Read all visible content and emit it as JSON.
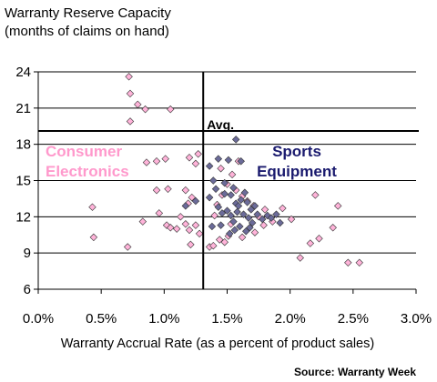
{
  "chart_data": {
    "type": "scatter",
    "title": "Warranty Reserve Capacity",
    "subtitle": "(months of claims on hand)",
    "xlabel": "Warranty Accrual Rate (as a percent of product sales)",
    "ylabel": "",
    "xlim": [
      0.0,
      3.0
    ],
    "ylim": [
      6,
      24
    ],
    "x_ticks": [
      0.0,
      0.5,
      1.0,
      1.5,
      2.0,
      2.5,
      3.0
    ],
    "x_tick_labels": [
      "0.0%",
      "0.5%",
      "1.0%",
      "1.5%",
      "2.0%",
      "2.5%",
      "3.0%"
    ],
    "y_ticks": [
      6,
      9,
      12,
      15,
      18,
      21,
      24
    ],
    "y_tick_labels": [
      "6",
      "9",
      "12",
      "15",
      "18",
      "21",
      "24"
    ],
    "grid": "horizontal",
    "reference_lines": {
      "vertical_x": 1.31,
      "horizontal_y": 19.1,
      "horizontal_label": "Avg."
    },
    "region_labels": [
      {
        "lines": [
          "Consumer",
          "Electronics"
        ],
        "color": "#ff99cc"
      },
      {
        "lines": [
          "Sports",
          "Equipment"
        ],
        "color": "#1a1a6e"
      }
    ],
    "source_note": "Source: Warranty Week",
    "series": [
      {
        "color": "#ffb3d9",
        "points": [
          [
            0.72,
            23.6
          ],
          [
            0.73,
            22.2
          ],
          [
            0.79,
            21.3
          ],
          [
            0.85,
            20.9
          ],
          [
            1.05,
            20.9
          ],
          [
            0.73,
            19.9
          ],
          [
            0.86,
            16.5
          ],
          [
            0.94,
            16.6
          ],
          [
            1.01,
            16.8
          ],
          [
            1.2,
            16.9
          ],
          [
            1.25,
            16.4
          ],
          [
            1.27,
            17.2
          ],
          [
            0.94,
            14.2
          ],
          [
            1.03,
            14.3
          ],
          [
            1.17,
            14.2
          ],
          [
            1.22,
            13.6
          ],
          [
            1.19,
            13.1
          ],
          [
            0.43,
            12.8
          ],
          [
            0.44,
            10.3
          ],
          [
            0.71,
            9.5
          ],
          [
            0.83,
            11.6
          ],
          [
            0.96,
            12.3
          ],
          [
            1.02,
            11.3
          ],
          [
            1.05,
            11.1
          ],
          [
            1.1,
            11.0
          ],
          [
            1.13,
            12.0
          ],
          [
            1.17,
            11.4
          ],
          [
            1.2,
            10.9
          ],
          [
            1.21,
            9.7
          ],
          [
            1.25,
            11.3
          ],
          [
            1.28,
            10.6
          ],
          [
            1.36,
            9.5
          ],
          [
            1.39,
            9.6
          ],
          [
            1.44,
            10.1
          ],
          [
            1.48,
            9.9
          ],
          [
            1.51,
            10.4
          ],
          [
            1.42,
            13.0
          ],
          [
            1.46,
            13.8
          ],
          [
            1.5,
            14.7
          ],
          [
            1.57,
            14.2
          ],
          [
            1.62,
            13.7
          ],
          [
            1.66,
            13.3
          ],
          [
            1.71,
            12.9
          ],
          [
            1.75,
            12.0
          ],
          [
            1.8,
            12.6
          ],
          [
            1.86,
            11.6
          ],
          [
            1.94,
            12.7
          ],
          [
            2.01,
            11.8
          ],
          [
            2.08,
            8.6
          ],
          [
            2.16,
            9.8
          ],
          [
            2.2,
            13.8
          ],
          [
            2.23,
            10.2
          ],
          [
            2.34,
            11.1
          ],
          [
            2.38,
            12.9
          ],
          [
            2.46,
            8.2
          ],
          [
            2.55,
            8.2
          ],
          [
            1.45,
            16.0
          ],
          [
            1.59,
            16.6
          ],
          [
            1.54,
            15.5
          ],
          [
            1.62,
            10.3
          ],
          [
            1.72,
            10.7
          ],
          [
            1.79,
            11.3
          ],
          [
            1.4,
            12.1
          ],
          [
            1.53,
            11.4
          ]
        ]
      },
      {
        "color": "#6b6b99",
        "points": [
          [
            1.57,
            18.4
          ],
          [
            1.43,
            16.8
          ],
          [
            1.51,
            16.7
          ],
          [
            1.61,
            16.6
          ],
          [
            1.36,
            16.2
          ],
          [
            1.39,
            15.0
          ],
          [
            1.41,
            14.3
          ],
          [
            1.48,
            13.9
          ],
          [
            1.53,
            13.8
          ],
          [
            1.57,
            13.1
          ],
          [
            1.61,
            13.4
          ],
          [
            1.66,
            13.2
          ],
          [
            1.69,
            12.6
          ],
          [
            1.72,
            12.9
          ],
          [
            1.43,
            12.8
          ],
          [
            1.46,
            12.3
          ],
          [
            1.5,
            12.5
          ],
          [
            1.53,
            12.1
          ],
          [
            1.55,
            11.6
          ],
          [
            1.58,
            12.4
          ],
          [
            1.63,
            12.2
          ],
          [
            1.67,
            11.9
          ],
          [
            1.7,
            11.5
          ],
          [
            1.74,
            12.2
          ],
          [
            1.78,
            11.8
          ],
          [
            1.82,
            12.1
          ],
          [
            1.85,
            11.9
          ],
          [
            1.89,
            12.2
          ],
          [
            1.92,
            11.5
          ],
          [
            1.56,
            10.9
          ],
          [
            1.6,
            11.2
          ],
          [
            1.65,
            10.8
          ],
          [
            1.17,
            12.9
          ],
          [
            1.25,
            13.3
          ],
          [
            1.36,
            13.6
          ],
          [
            1.38,
            11.2
          ],
          [
            1.48,
            14.8
          ],
          [
            1.55,
            14.4
          ],
          [
            1.64,
            14.0
          ],
          [
            1.59,
            12.9
          ],
          [
            1.45,
            11.3
          ],
          [
            1.52,
            10.6
          ],
          [
            1.68,
            11.1
          ]
        ]
      }
    ]
  }
}
